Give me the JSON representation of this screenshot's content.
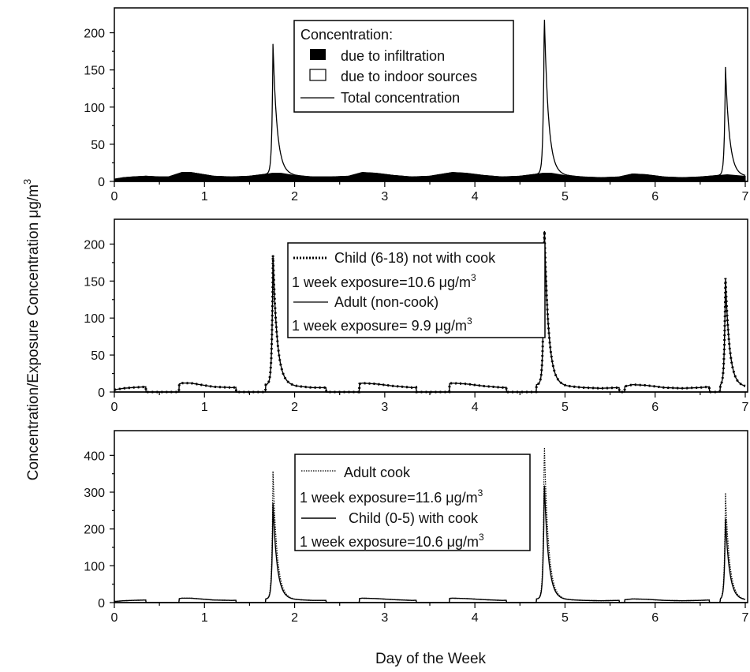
{
  "chart_data": [
    {
      "type": "area",
      "panel": "top",
      "xlabel": "Day of the Week",
      "ylabel": "Concentration/Exposure Concentration μg/m³",
      "xlim": [
        0,
        7
      ],
      "ylim": [
        0,
        225
      ],
      "xticks": [
        "0",
        "1",
        "2",
        "3",
        "4",
        "5",
        "6",
        "7"
      ],
      "yticks": [
        "0",
        "50",
        "100",
        "150",
        "200"
      ],
      "legend": {
        "title": "Concentration:",
        "entries": [
          "due to infiltration",
          "due to indoor sources",
          "Total concentration"
        ],
        "placement": "top-center"
      },
      "series": [
        {
          "name": "due to infiltration",
          "style": "filled-black",
          "x": [
            0.0,
            0.1,
            0.2,
            0.35,
            0.5,
            0.6,
            0.75,
            0.85,
            1.0,
            1.1,
            1.3,
            1.5,
            1.7,
            1.75,
            1.85,
            2.0,
            2.2,
            2.4,
            2.6,
            2.75,
            2.9,
            3.1,
            3.3,
            3.5,
            3.75,
            3.9,
            4.1,
            4.3,
            4.5,
            4.7,
            4.75,
            4.85,
            5.0,
            5.2,
            5.4,
            5.6,
            5.75,
            5.9,
            6.1,
            6.3,
            6.5,
            6.7,
            6.8,
            6.9,
            7.0
          ],
          "values": [
            3,
            5,
            6,
            7,
            6,
            6,
            12,
            12,
            9,
            7,
            6,
            7,
            10,
            11,
            11,
            8,
            6,
            6,
            7,
            12,
            11,
            8,
            6,
            7,
            12,
            11,
            8,
            6,
            7,
            10,
            11,
            11,
            8,
            6,
            5,
            6,
            10,
            9,
            6,
            5,
            6,
            8,
            9,
            8,
            7
          ]
        },
        {
          "name": "Total concentration",
          "style": "line",
          "base": "due to infiltration",
          "peaks": [
            {
              "x": 1.76,
              "value": 185
            },
            {
              "x": 4.77,
              "value": 227
            },
            {
              "x": 6.78,
              "value": 154
            }
          ]
        }
      ]
    },
    {
      "type": "line",
      "panel": "middle",
      "xlim": [
        0,
        7
      ],
      "ylim": [
        0,
        225
      ],
      "xticks": [
        "0",
        "1",
        "2",
        "3",
        "4",
        "5",
        "6",
        "7"
      ],
      "yticks": [
        "0",
        "50",
        "100",
        "150",
        "200"
      ],
      "legend": {
        "entries": [
          "Child (6-18) not with cook",
          "1 week exposure=10.6 μg/m³",
          "Adult (non-cook)",
          "1 week exposure= 9.9 μg/m³"
        ],
        "placement": "top-center"
      },
      "series": [
        {
          "name": "Child (6-18) not with cook",
          "style": "dotted",
          "segments": [
            {
              "x": [
                0.0,
                0.05,
                0.1,
                0.35
              ],
              "values": [
                0,
                5,
                6,
                6
              ]
            },
            {
              "x": [
                0.35,
                0.55,
                0.7
              ],
              "values": [
                0,
                0,
                0
              ]
            },
            {
              "x": [
                0.7,
                0.75,
                1.0,
                1.3,
                1.35
              ],
              "values": [
                0,
                13,
                10,
                8,
                8
              ]
            },
            {
              "x": [
                1.35,
                1.55,
                1.65
              ],
              "values": [
                0,
                0,
                4
              ]
            }
          ],
          "peaks": [
            {
              "x": 1.76,
              "value": 185
            },
            {
              "x": 4.77,
              "value": 227
            },
            {
              "x": 6.78,
              "value": 154
            }
          ]
        },
        {
          "name": "Adult (non-cook)",
          "style": "line",
          "weekly_exposure": 9.9
        }
      ]
    },
    {
      "type": "line",
      "panel": "bottom",
      "xlim": [
        0,
        7
      ],
      "ylim": [
        0,
        450
      ],
      "xticks": [
        "0",
        "1",
        "2",
        "3",
        "4",
        "5",
        "6",
        "7"
      ],
      "yticks": [
        "0",
        "100",
        "200",
        "300",
        "400"
      ],
      "legend": {
        "entries": [
          "Adult cook",
          "1 week exposure=11.6 μg/m³",
          "Child (0-5) with cook",
          "1 week exposure=10.6 μg/m³"
        ],
        "placement": "top-center"
      },
      "series": [
        {
          "name": "Adult cook",
          "style": "dotted",
          "peaks": [
            {
              "x": 1.76,
              "value": 357
            },
            {
              "x": 4.77,
              "value": 440
            },
            {
              "x": 6.78,
              "value": 298
            }
          ]
        },
        {
          "name": "Child (0-5) with cook",
          "style": "line",
          "peaks": [
            {
              "x": 1.76,
              "value": 270
            },
            {
              "x": 4.77,
              "value": 332
            },
            {
              "x": 6.78,
              "value": 228
            }
          ]
        }
      ]
    }
  ],
  "labels": {
    "xlabel": "Day of the Week",
    "ylabel_main": "Concentration/Exposure Concentration μg/m",
    "ylabel_sup": "3"
  },
  "legends": {
    "top": {
      "title": "Concentration:",
      "infiltration": "due to infiltration",
      "indoor": "due to indoor sources",
      "total": "Total concentration"
    },
    "middle": {
      "child": "Child (6-18) not with cook",
      "child_exp": "1 week exposure=10.6 μg/m",
      "adult": "Adult (non-cook)",
      "adult_exp": "1 week exposure= 9.9 μg/m",
      "sup": "3"
    },
    "bottom": {
      "cook": "Adult cook",
      "cook_exp": "1 week exposure=11.6 μg/m",
      "child": "Child (0-5) with cook",
      "child_exp": "1 week exposure=10.6 μg/m",
      "sup": "3"
    }
  }
}
